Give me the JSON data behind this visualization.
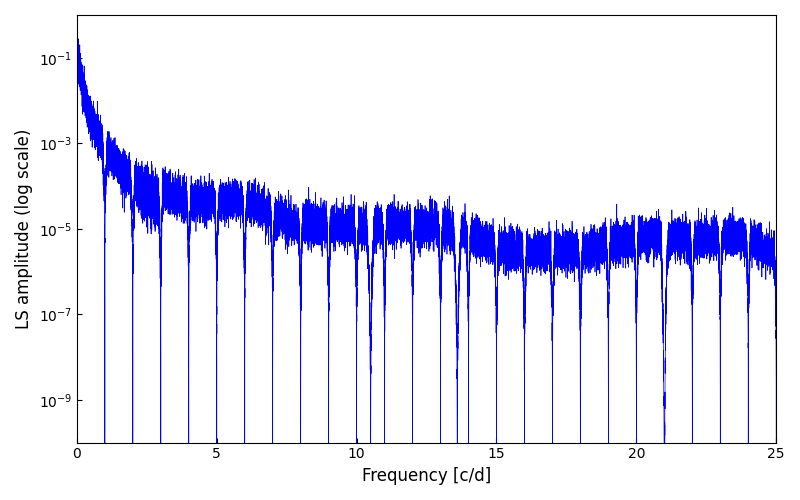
{
  "xlabel": "Frequency [c/d]",
  "ylabel": "LS amplitude (log scale)",
  "xlim": [
    0,
    25
  ],
  "line_color": "#0000ff",
  "line_width": 0.5,
  "figsize": [
    8.0,
    5.0
  ],
  "dpi": 100,
  "background_color": "#ffffff",
  "yticks": [
    1e-09,
    1e-07,
    1e-05,
    0.001,
    0.1
  ],
  "xticks": [
    0,
    5,
    10,
    15,
    20,
    25
  ],
  "ylim": [
    1e-10,
    1.0
  ],
  "seed": 123,
  "n_obs": 3650,
  "sampling_rate": 1.0,
  "freq_max": 25.0,
  "n_freq": 25000
}
